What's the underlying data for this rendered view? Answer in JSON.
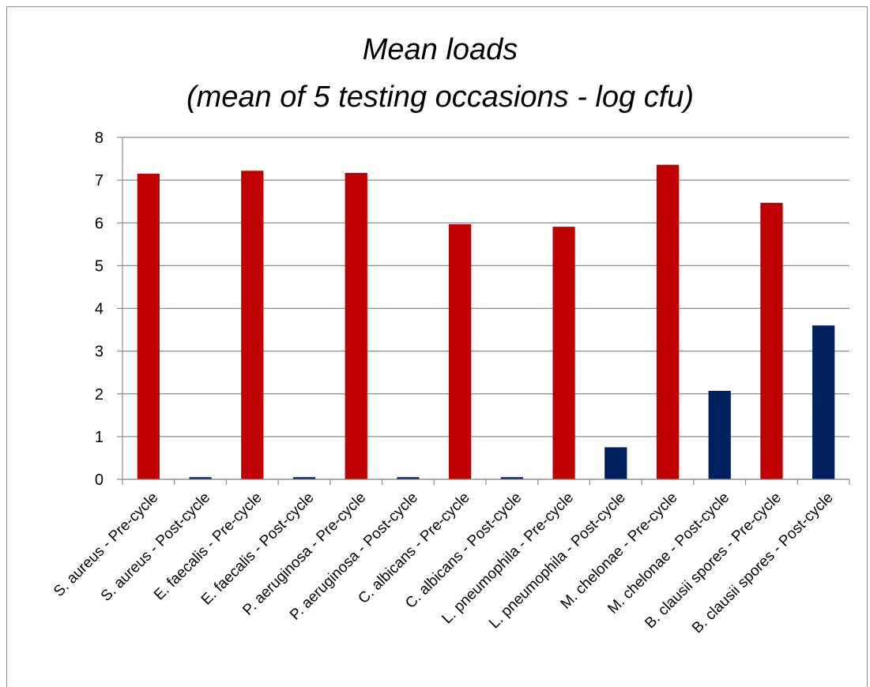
{
  "chart_data": {
    "type": "bar",
    "title": "Mean loads",
    "subtitle": "(mean of 5 testing occasions - log cfu)",
    "xlabel": "",
    "ylabel": "",
    "ylim": [
      0,
      8
    ],
    "yticks": [
      "0",
      "1",
      "2",
      "3",
      "4",
      "5",
      "6",
      "7",
      "8"
    ],
    "grid": "horizontal",
    "legend": "none",
    "colors": {
      "pre": "#c00000",
      "post": "#002060",
      "grid": "#8c8c8c",
      "axis": "#8c8c8c"
    },
    "categories": [
      "S. aureus - Pre-cycle",
      "S. aureus - Post-cycle",
      "E. faecalis - Pre-cycle",
      "E. faecalis - Post-cycle",
      "P. aeruginosa - Pre-cycle",
      "P. aeruginosa - Post-cycle",
      "C. albicans - Pre-cycle",
      "C. albicans - Post-cycle",
      "L. pneumophila - Pre-cycle",
      "L. pneumophila - Post-cycle",
      "M. chelonae - Pre-cycle",
      "M. chelonae - Post-cycle",
      "B. clausii spores - Pre-cycle",
      "B. clausii spores - Post-cycle"
    ],
    "values": [
      7.15,
      0.05,
      7.22,
      0.05,
      7.17,
      0.05,
      5.97,
      0.05,
      5.91,
      0.75,
      7.36,
      2.07,
      6.47,
      3.6
    ],
    "bar_color_keys": [
      "pre",
      "post",
      "pre",
      "post",
      "pre",
      "post",
      "pre",
      "post",
      "pre",
      "post",
      "pre",
      "post",
      "pre",
      "post"
    ]
  }
}
